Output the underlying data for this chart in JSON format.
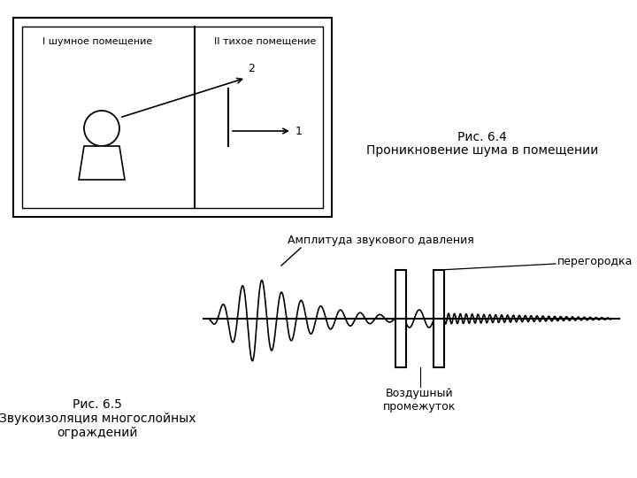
{
  "fig1_title": "Рис. 6.4",
  "fig1_subtitle": "Проникновение шума в помещении",
  "fig1_label1": "I шумное помещение",
  "fig1_label2": "II тихое помещение",
  "fig1_arrow1_label": "1",
  "fig1_arrow2_label": "2",
  "fig2_title": "Рис. 6.5",
  "fig2_subtitle": "Звукоизоляция многослойных\nограждений",
  "fig2_amplitude_label": "Амплитуда звукового давления",
  "fig2_wall_label": "перегородка",
  "fig2_gap_label": "Воздушный\nпромежуток",
  "bg_color": "#ffffff",
  "line_color": "#000000",
  "text_color": "#000000"
}
